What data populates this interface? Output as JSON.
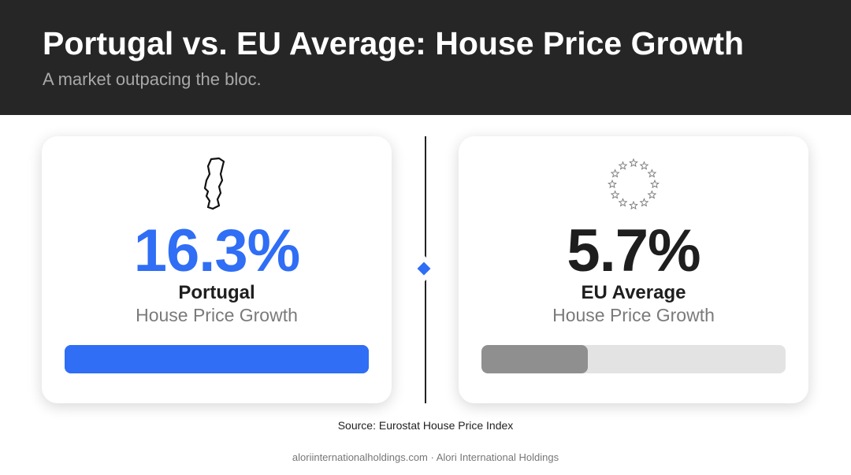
{
  "header": {
    "title": "Portugal vs. EU Average: House Price Growth",
    "subtitle": "A market outpacing the bloc."
  },
  "cards": [
    {
      "value": 16.3,
      "value_label": "16.3%",
      "name": "Portugal",
      "metric": "House Price Growth",
      "color": "#2f6ef5",
      "track_color": "#2f6ef5"
    },
    {
      "value": 5.7,
      "value_label": "5.7%",
      "name": "EU Average",
      "metric": "House Price Growth",
      "color": "#8f8f8f",
      "track_color": "#e3e3e3"
    }
  ],
  "source": "Source: Eurostat House Price Index",
  "footer": "aloriinternationalholdings.com · Alori International Holdings"
}
